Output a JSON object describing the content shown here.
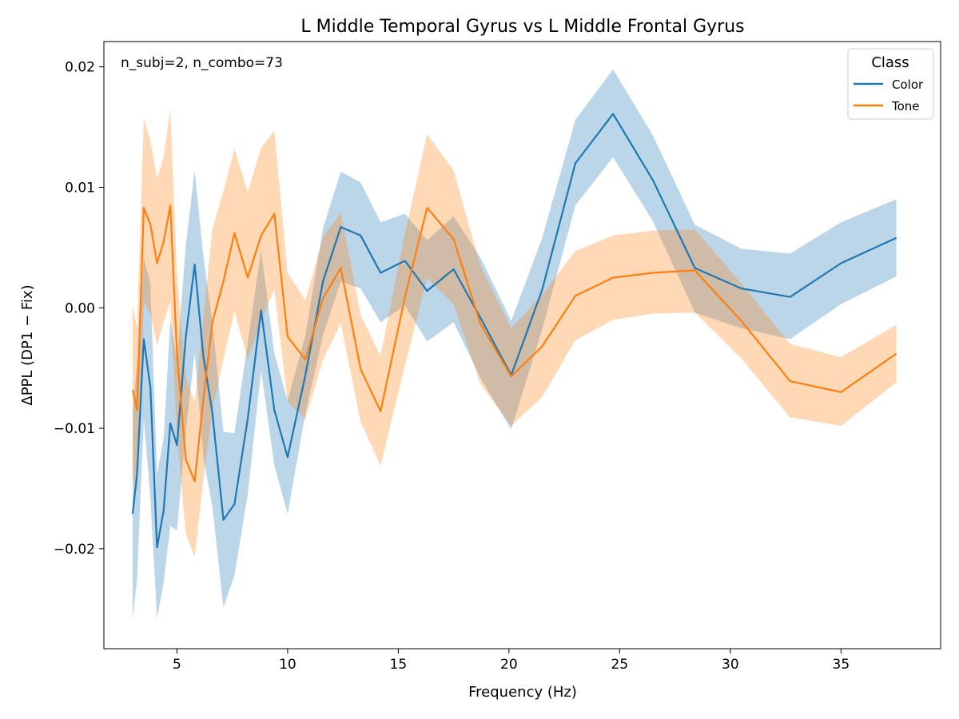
{
  "chart_data": {
    "type": "line",
    "title": "L Middle Temporal Gyrus vs L Middle Frontal Gyrus",
    "xlabel": "Frequency (Hz)",
    "ylabel": "ΔPPL (DP1 − Fix)",
    "annotation": "n_subj=2, n_combo=73",
    "xlim": [
      1.7,
      39.5
    ],
    "ylim": [
      -0.0283,
      0.0221
    ],
    "xticks": [
      5,
      10,
      15,
      20,
      25,
      30,
      35
    ],
    "xtick_labels": [
      "5",
      "10",
      "15",
      "20",
      "25",
      "30",
      "35"
    ],
    "yticks": [
      -0.02,
      -0.01,
      0.0,
      0.01,
      0.02
    ],
    "ytick_labels": [
      "−0.02",
      "−0.01",
      "0.00",
      "0.01",
      "0.02"
    ],
    "grid": false,
    "legend": {
      "title": "Class",
      "position": "top-right"
    },
    "series": [
      {
        "name": "Color",
        "color": "#1f77b4",
        "band_color": "#1f77b4",
        "x": [
          3.0,
          3.2,
          3.5,
          3.8,
          4.1,
          4.4,
          4.7,
          5.0,
          5.4,
          5.8,
          6.2,
          6.6,
          7.1,
          7.6,
          8.2,
          8.8,
          9.4,
          10.0,
          10.8,
          11.6,
          12.4,
          13.3,
          14.2,
          15.3,
          16.3,
          17.5,
          18.7,
          20.1,
          21.5,
          23.0,
          24.7,
          26.5,
          28.4,
          30.5,
          32.7,
          35.0,
          37.5
        ],
        "y": [
          -0.0171,
          -0.0138,
          -0.0026,
          -0.0066,
          -0.0199,
          -0.0168,
          -0.0096,
          -0.0114,
          -0.0024,
          0.0036,
          -0.0041,
          -0.0087,
          -0.0176,
          -0.0163,
          -0.0092,
          -0.0002,
          -0.0085,
          -0.0124,
          -0.0056,
          0.0022,
          0.0067,
          0.006,
          0.0029,
          0.0039,
          0.0014,
          0.0032,
          -0.0008,
          -0.0056,
          0.0015,
          0.012,
          0.0161,
          0.0106,
          0.0033,
          0.0016,
          0.0009,
          0.0037,
          0.0058
        ],
        "lower": [
          -0.0258,
          -0.0225,
          -0.0092,
          -0.0158,
          -0.0258,
          -0.0228,
          -0.0181,
          -0.0185,
          -0.0102,
          -0.0037,
          -0.0125,
          -0.0165,
          -0.0249,
          -0.0222,
          -0.0155,
          -0.0052,
          -0.0131,
          -0.0171,
          -0.0088,
          -0.0023,
          0.0022,
          0.0016,
          -0.0012,
          0.0002,
          -0.0028,
          -0.0012,
          -0.0058,
          -0.0101,
          -0.0018,
          0.0085,
          0.0125,
          0.0072,
          -0.0004,
          -0.0017,
          -0.0026,
          0.0003,
          0.0026
        ],
        "upper": [
          -0.0086,
          -0.0046,
          0.0042,
          0.002,
          -0.0138,
          -0.0108,
          -0.001,
          -0.0044,
          0.0052,
          0.0114,
          0.0042,
          -0.0011,
          -0.0103,
          -0.0104,
          -0.0029,
          0.0048,
          -0.0038,
          -0.0077,
          -0.0023,
          0.0066,
          0.0113,
          0.0104,
          0.0071,
          0.0078,
          0.0056,
          0.0076,
          0.0042,
          -0.0011,
          0.0058,
          0.0156,
          0.0198,
          0.0143,
          0.0069,
          0.0049,
          0.0045,
          0.0071,
          0.009
        ]
      },
      {
        "name": "Tone",
        "color": "#ff7f0e",
        "band_color": "#ff7f0e",
        "x": [
          3.0,
          3.2,
          3.5,
          3.8,
          4.1,
          4.4,
          4.7,
          5.0,
          5.4,
          5.8,
          6.2,
          6.6,
          7.1,
          7.6,
          8.2,
          8.8,
          9.4,
          10.0,
          10.8,
          11.6,
          12.4,
          13.3,
          14.2,
          15.3,
          16.3,
          17.5,
          18.7,
          20.1,
          21.5,
          23.0,
          24.7,
          26.5,
          28.4,
          30.5,
          32.7,
          35.0,
          37.5
        ],
        "y": [
          -0.0068,
          -0.0085,
          0.0083,
          0.0069,
          0.0037,
          0.0055,
          0.0085,
          -0.0038,
          -0.0126,
          -0.0144,
          -0.0075,
          -0.0012,
          0.0022,
          0.0062,
          0.0025,
          0.006,
          0.0078,
          -0.0024,
          -0.0043,
          0.0008,
          0.0033,
          -0.0051,
          -0.0086,
          0.0009,
          0.0083,
          0.0057,
          -0.0013,
          -0.0057,
          -0.0032,
          0.001,
          0.0025,
          0.0029,
          0.0031,
          -0.0011,
          -0.0061,
          -0.007,
          -0.0038
        ],
        "lower": [
          -0.014,
          -0.0153,
          0.0005,
          -0.0005,
          -0.0031,
          -0.0012,
          0.0005,
          -0.0107,
          -0.0188,
          -0.0207,
          -0.0142,
          -0.0085,
          -0.0043,
          -0.0003,
          -0.0043,
          -0.001,
          0.0015,
          -0.0078,
          -0.0092,
          -0.0043,
          -0.0013,
          -0.0095,
          -0.0131,
          -0.0048,
          0.0025,
          0.0003,
          -0.0063,
          -0.0098,
          -0.0074,
          -0.0027,
          -0.001,
          -0.0005,
          -0.0004,
          -0.0042,
          -0.0091,
          -0.0098,
          -0.0062
        ],
        "upper": [
          0.0001,
          -0.0017,
          0.0157,
          0.0139,
          0.0107,
          0.0125,
          0.0165,
          0.0029,
          -0.0058,
          -0.0078,
          -0.0008,
          0.0065,
          0.0097,
          0.0132,
          0.0096,
          0.0133,
          0.0147,
          0.0029,
          0.0006,
          0.0059,
          0.0079,
          -0.0006,
          -0.004,
          0.0062,
          0.0144,
          0.0114,
          0.0035,
          -0.0017,
          0.0011,
          0.0047,
          0.006,
          0.0064,
          0.0065,
          0.002,
          -0.003,
          -0.0041,
          -0.0014
        ]
      }
    ]
  }
}
